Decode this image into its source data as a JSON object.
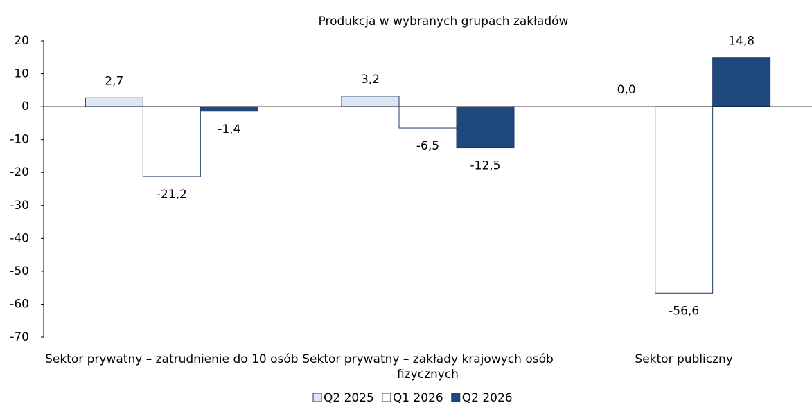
{
  "chart_data": {
    "type": "bar",
    "title": "Produkcja w wybranych grupach zakładów",
    "categories": [
      "Sektor prywatny – zatrudnienie do 10 osób",
      "Sektor prywatny – zakłady krajowych osób fizycznych",
      "Sektor publiczny"
    ],
    "series": [
      {
        "name": "Q2 2025",
        "color": "#dce6f2",
        "values": [
          2.7,
          3.2,
          0.0
        ],
        "value_labels": [
          "2,7",
          "3,2",
          "0,0"
        ]
      },
      {
        "name": "Q1 2026",
        "color": "#ffffff",
        "values": [
          -21.2,
          -6.5,
          -56.6
        ],
        "value_labels": [
          "-21,2",
          "-6,5",
          "-56,6"
        ]
      },
      {
        "name": "Q2 2026",
        "color": "#1f497d",
        "values": [
          -1.4,
          -12.5,
          14.8
        ],
        "value_labels": [
          "-1,4",
          "-12,5",
          "14,8"
        ]
      }
    ],
    "ylim": [
      -70,
      20
    ],
    "yticks": [
      -70,
      -60,
      -50,
      -40,
      -30,
      -20,
      -10,
      0,
      10,
      20
    ],
    "legend": "bottom"
  }
}
